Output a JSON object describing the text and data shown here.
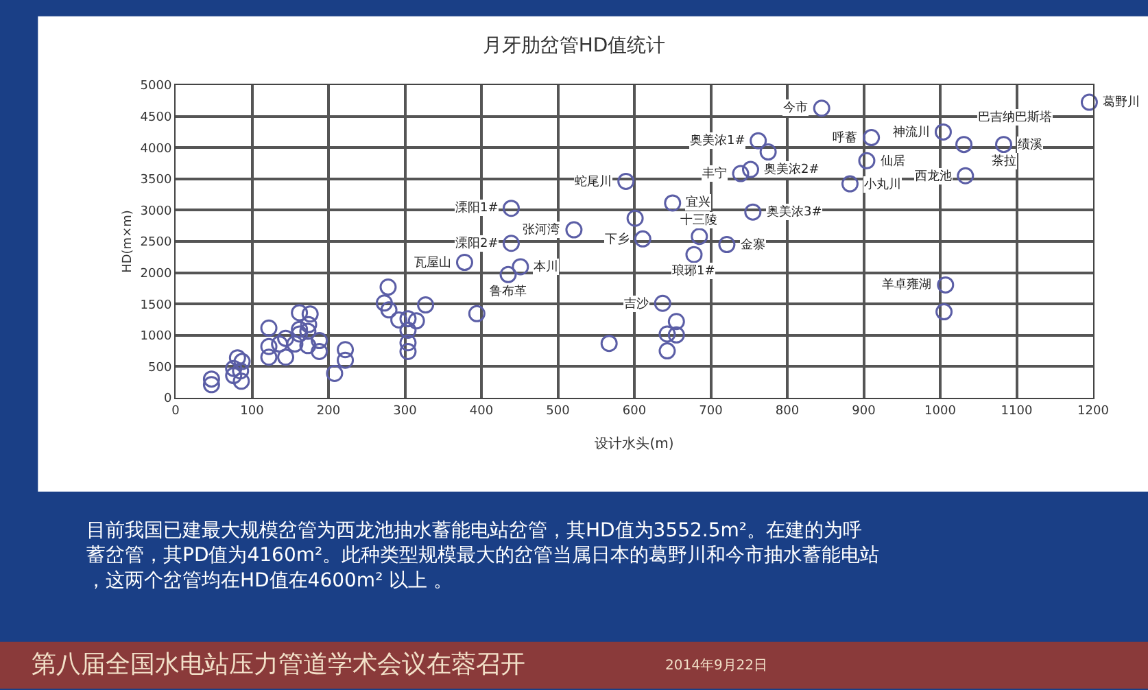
{
  "chart_data": {
    "type": "scatter",
    "title": "月牙肋岔管HD值统计",
    "xlabel": "设计水头(m)",
    "ylabel": "HD(m×m)",
    "x": [
      47,
      47,
      81,
      76,
      87,
      76,
      86,
      85,
      122,
      122,
      122,
      136,
      144,
      144,
      156,
      162,
      162,
      162,
      176,
      174,
      173,
      173,
      188,
      188,
      208,
      222,
      222,
      278,
      273,
      279,
      292,
      304,
      304,
      304,
      304,
      315,
      327,
      394,
      378,
      439,
      439,
      435,
      451,
      521,
      567,
      589,
      650,
      601,
      611,
      685,
      678,
      721,
      637,
      655,
      643,
      655,
      643,
      762,
      775,
      752,
      739,
      755,
      845,
      910,
      904,
      882,
      1004,
      1031,
      1083,
      1033,
      1195,
      1007,
      1005
    ],
    "series": [
      {
        "color": "#5b5ea6",
        "values": [
          300,
          210,
          640,
          470,
          580,
          355,
          265,
          430,
          1115,
          820,
          650,
          860,
          950,
          650,
          860,
          1360,
          1095,
          1020,
          1340,
          1170,
          1065,
          835,
          915,
          740,
          390,
          770,
          600,
          1770,
          1515,
          1405,
          1245,
          1265,
          1080,
          880,
          740,
          1230,
          1485,
          1345,
          2165,
          3030,
          2470,
          1970,
          2095,
          2685,
          870,
          3460,
          3115,
          2870,
          2540,
          2580,
          2290,
          2450,
          1510,
          1220,
          1020,
          1005,
          750,
          4110,
          3930,
          3650,
          3585,
          2970,
          4630,
          4160,
          3790,
          3420,
          4250,
          4050,
          4050,
          3550,
          4725,
          1805,
          1375
        ]
      }
    ],
    "xlim": [
      0,
      1200
    ],
    "xticks": [
      0,
      100,
      200,
      300,
      400,
      500,
      600,
      700,
      800,
      900,
      1000,
      1100,
      1200
    ],
    "ylim": [
      0,
      5000
    ],
    "yticks": [
      0,
      500,
      1000,
      1500,
      2000,
      2500,
      3000,
      3500,
      4000,
      4500,
      5000
    ],
    "grid": true,
    "marker": "circle",
    "annotations": [
      {
        "text": "瓦屋山",
        "x": 378,
        "y": 2165
      },
      {
        "text": "溧阳1#",
        "x": 439,
        "y": 3030
      },
      {
        "text": "溧阳2#",
        "x": 439,
        "y": 2470
      },
      {
        "text": "鲁布革",
        "x": 435,
        "y": 1970
      },
      {
        "text": "本川",
        "x": 451,
        "y": 2095
      },
      {
        "text": "张河湾",
        "x": 521,
        "y": 2685
      },
      {
        "text": "蛇尾川",
        "x": 589,
        "y": 3460
      },
      {
        "text": "宜兴",
        "x": 650,
        "y": 3115
      },
      {
        "text": "下乡",
        "x": 611,
        "y": 2540
      },
      {
        "text": "十三陵",
        "x": 685,
        "y": 2580
      },
      {
        "text": "琅琊1#",
        "x": 678,
        "y": 2290
      },
      {
        "text": "金寨",
        "x": 721,
        "y": 2450
      },
      {
        "text": "吉沙",
        "x": 637,
        "y": 1510
      },
      {
        "text": "奥美浓1#",
        "x": 762,
        "y": 4110
      },
      {
        "text": "奥美浓2#",
        "x": 752,
        "y": 3650
      },
      {
        "text": "丰宁",
        "x": 739,
        "y": 3585
      },
      {
        "text": "奥美浓3#",
        "x": 755,
        "y": 2970
      },
      {
        "text": "今市",
        "x": 845,
        "y": 4630
      },
      {
        "text": "呼蓄",
        "x": 910,
        "y": 4160
      },
      {
        "text": "仙居",
        "x": 904,
        "y": 3790
      },
      {
        "text": "小丸川",
        "x": 882,
        "y": 3420
      },
      {
        "text": "神流川",
        "x": 1004,
        "y": 4250
      },
      {
        "text": "巴吉纳巴斯塔",
        "x": 1031,
        "y": 4050
      },
      {
        "text": "绩溪",
        "x": 1083,
        "y": 4050
      },
      {
        "text": "茶拉",
        "x": 1083,
        "y": 4050
      },
      {
        "text": "西龙池",
        "x": 1033,
        "y": 3550
      },
      {
        "text": "葛野川",
        "x": 1195,
        "y": 4725
      },
      {
        "text": "羊卓雍湖",
        "x": 1007,
        "y": 1805
      },
      "目前我国已建最大规模岔管为西龙池抽水蓄能电站岔管，其HD值为3552.5m²。在建的为呼蓄岔管，其PD值为4160m²。此种类型规模最大的岔管当属日本的葛野川和今市抽水蓄能电站，这两个岔管均在HD值在4600m² 以上 。",
      "第八届全国水电站压力管道学术会议在蓉召开",
      "2014年9月22日"
    ]
  }
}
